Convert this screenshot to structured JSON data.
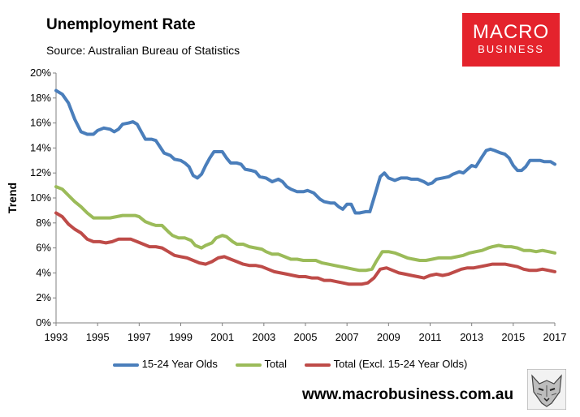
{
  "header": {
    "title": "Unemployment Rate",
    "source": "Source: Australian Bureau of Statistics"
  },
  "logo": {
    "line1": "MACRO",
    "line2": "BUSINESS"
  },
  "footer": {
    "url": "www.macrobusiness.com.au"
  },
  "chart_data": {
    "type": "line",
    "title": "Unemployment Rate",
    "xlabel": "",
    "ylabel": "Trend",
    "xlim": [
      1993,
      2017
    ],
    "ylim": [
      0,
      20
    ],
    "y_ticks": [
      0,
      2,
      4,
      6,
      8,
      10,
      12,
      14,
      16,
      18,
      20
    ],
    "y_tick_labels": [
      "0%",
      "2%",
      "4%",
      "6%",
      "8%",
      "10%",
      "12%",
      "14%",
      "16%",
      "18%",
      "20%"
    ],
    "x_ticks": [
      1993,
      1995,
      1997,
      1999,
      2001,
      2003,
      2005,
      2007,
      2009,
      2011,
      2013,
      2015,
      2017
    ],
    "x_tick_labels": [
      "1993",
      "1995",
      "1997",
      "1999",
      "2001",
      "2003",
      "2005",
      "2007",
      "2009",
      "2011",
      "2013",
      "2015",
      "2017"
    ],
    "grid": false,
    "legend_position": "bottom",
    "series": [
      {
        "name": "15-24 Year Olds",
        "color": "#4a7ebb",
        "points": [
          [
            1993.0,
            18.6
          ],
          [
            1993.3,
            18.3
          ],
          [
            1993.6,
            17.6
          ],
          [
            1993.9,
            16.3
          ],
          [
            1994.2,
            15.3
          ],
          [
            1994.5,
            15.1
          ],
          [
            1994.8,
            15.1
          ],
          [
            1995.0,
            15.4
          ],
          [
            1995.3,
            15.6
          ],
          [
            1995.6,
            15.5
          ],
          [
            1995.8,
            15.3
          ],
          [
            1996.0,
            15.5
          ],
          [
            1996.2,
            15.9
          ],
          [
            1996.5,
            16.0
          ],
          [
            1996.7,
            16.1
          ],
          [
            1996.9,
            15.9
          ],
          [
            1997.1,
            15.3
          ],
          [
            1997.3,
            14.7
          ],
          [
            1997.6,
            14.7
          ],
          [
            1997.8,
            14.6
          ],
          [
            1998.0,
            14.1
          ],
          [
            1998.2,
            13.6
          ],
          [
            1998.5,
            13.4
          ],
          [
            1998.7,
            13.1
          ],
          [
            1999.0,
            13.0
          ],
          [
            1999.2,
            12.8
          ],
          [
            1999.4,
            12.5
          ],
          [
            1999.6,
            11.8
          ],
          [
            1999.8,
            11.6
          ],
          [
            2000.0,
            11.9
          ],
          [
            2000.2,
            12.6
          ],
          [
            2000.4,
            13.2
          ],
          [
            2000.6,
            13.7
          ],
          [
            2000.8,
            13.7
          ],
          [
            2001.0,
            13.7
          ],
          [
            2001.2,
            13.2
          ],
          [
            2001.4,
            12.8
          ],
          [
            2001.7,
            12.8
          ],
          [
            2001.9,
            12.7
          ],
          [
            2002.1,
            12.3
          ],
          [
            2002.4,
            12.2
          ],
          [
            2002.6,
            12.1
          ],
          [
            2002.8,
            11.7
          ],
          [
            2003.1,
            11.6
          ],
          [
            2003.4,
            11.3
          ],
          [
            2003.7,
            11.5
          ],
          [
            2003.9,
            11.3
          ],
          [
            2004.1,
            10.9
          ],
          [
            2004.3,
            10.7
          ],
          [
            2004.6,
            10.5
          ],
          [
            2004.9,
            10.5
          ],
          [
            2005.1,
            10.6
          ],
          [
            2005.4,
            10.4
          ],
          [
            2005.7,
            9.9
          ],
          [
            2005.9,
            9.7
          ],
          [
            2006.2,
            9.6
          ],
          [
            2006.4,
            9.6
          ],
          [
            2006.6,
            9.3
          ],
          [
            2006.8,
            9.1
          ],
          [
            2007.0,
            9.5
          ],
          [
            2007.2,
            9.5
          ],
          [
            2007.4,
            8.8
          ],
          [
            2007.6,
            8.8
          ],
          [
            2007.9,
            8.9
          ],
          [
            2008.1,
            8.9
          ],
          [
            2008.3,
            10.0
          ],
          [
            2008.6,
            11.7
          ],
          [
            2008.8,
            12.0
          ],
          [
            2009.0,
            11.6
          ],
          [
            2009.3,
            11.4
          ],
          [
            2009.6,
            11.6
          ],
          [
            2009.9,
            11.6
          ],
          [
            2010.1,
            11.5
          ],
          [
            2010.4,
            11.5
          ],
          [
            2010.7,
            11.3
          ],
          [
            2010.9,
            11.1
          ],
          [
            2011.1,
            11.2
          ],
          [
            2011.3,
            11.5
          ],
          [
            2011.6,
            11.6
          ],
          [
            2011.9,
            11.7
          ],
          [
            2012.1,
            11.9
          ],
          [
            2012.4,
            12.1
          ],
          [
            2012.6,
            12.0
          ],
          [
            2012.8,
            12.3
          ],
          [
            2013.0,
            12.6
          ],
          [
            2013.2,
            12.5
          ],
          [
            2013.5,
            13.3
          ],
          [
            2013.7,
            13.8
          ],
          [
            2013.9,
            13.9
          ],
          [
            2014.1,
            13.8
          ],
          [
            2014.4,
            13.6
          ],
          [
            2014.6,
            13.5
          ],
          [
            2014.8,
            13.2
          ],
          [
            2015.0,
            12.6
          ],
          [
            2015.2,
            12.2
          ],
          [
            2015.4,
            12.2
          ],
          [
            2015.6,
            12.5
          ],
          [
            2015.8,
            13.0
          ],
          [
            2016.0,
            13.0
          ],
          [
            2016.3,
            13.0
          ],
          [
            2016.5,
            12.9
          ],
          [
            2016.8,
            12.9
          ],
          [
            2017.0,
            12.7
          ]
        ]
      },
      {
        "name": "Total",
        "color": "#9bbb59",
        "points": [
          [
            1993.0,
            10.9
          ],
          [
            1993.3,
            10.7
          ],
          [
            1993.6,
            10.2
          ],
          [
            1993.9,
            9.7
          ],
          [
            1994.2,
            9.3
          ],
          [
            1994.5,
            8.8
          ],
          [
            1994.8,
            8.4
          ],
          [
            1995.0,
            8.4
          ],
          [
            1995.3,
            8.4
          ],
          [
            1995.6,
            8.4
          ],
          [
            1995.9,
            8.5
          ],
          [
            1996.2,
            8.6
          ],
          [
            1996.5,
            8.6
          ],
          [
            1996.8,
            8.6
          ],
          [
            1997.0,
            8.5
          ],
          [
            1997.3,
            8.1
          ],
          [
            1997.6,
            7.9
          ],
          [
            1997.8,
            7.8
          ],
          [
            1998.1,
            7.8
          ],
          [
            1998.4,
            7.3
          ],
          [
            1998.6,
            7.0
          ],
          [
            1998.9,
            6.8
          ],
          [
            1999.2,
            6.8
          ],
          [
            1999.5,
            6.6
          ],
          [
            1999.7,
            6.2
          ],
          [
            2000.0,
            6.0
          ],
          [
            2000.2,
            6.2
          ],
          [
            2000.5,
            6.4
          ],
          [
            2000.7,
            6.8
          ],
          [
            2001.0,
            7.0
          ],
          [
            2001.2,
            6.9
          ],
          [
            2001.5,
            6.5
          ],
          [
            2001.7,
            6.3
          ],
          [
            2002.0,
            6.3
          ],
          [
            2002.3,
            6.1
          ],
          [
            2002.6,
            6.0
          ],
          [
            2002.9,
            5.9
          ],
          [
            2003.1,
            5.7
          ],
          [
            2003.4,
            5.5
          ],
          [
            2003.7,
            5.5
          ],
          [
            2004.0,
            5.3
          ],
          [
            2004.3,
            5.1
          ],
          [
            2004.6,
            5.1
          ],
          [
            2004.9,
            5.0
          ],
          [
            2005.2,
            5.0
          ],
          [
            2005.5,
            5.0
          ],
          [
            2005.8,
            4.8
          ],
          [
            2006.1,
            4.7
          ],
          [
            2006.4,
            4.6
          ],
          [
            2006.7,
            4.5
          ],
          [
            2007.0,
            4.4
          ],
          [
            2007.3,
            4.3
          ],
          [
            2007.6,
            4.2
          ],
          [
            2007.9,
            4.2
          ],
          [
            2008.2,
            4.3
          ],
          [
            2008.4,
            4.9
          ],
          [
            2008.7,
            5.7
          ],
          [
            2009.0,
            5.7
          ],
          [
            2009.3,
            5.6
          ],
          [
            2009.6,
            5.4
          ],
          [
            2009.9,
            5.2
          ],
          [
            2010.2,
            5.1
          ],
          [
            2010.5,
            5.0
          ],
          [
            2010.8,
            5.0
          ],
          [
            2011.1,
            5.1
          ],
          [
            2011.4,
            5.2
          ],
          [
            2011.7,
            5.2
          ],
          [
            2012.0,
            5.2
          ],
          [
            2012.3,
            5.3
          ],
          [
            2012.6,
            5.4
          ],
          [
            2012.9,
            5.6
          ],
          [
            2013.2,
            5.7
          ],
          [
            2013.5,
            5.8
          ],
          [
            2013.8,
            6.0
          ],
          [
            2014.0,
            6.1
          ],
          [
            2014.3,
            6.2
          ],
          [
            2014.6,
            6.1
          ],
          [
            2014.9,
            6.1
          ],
          [
            2015.2,
            6.0
          ],
          [
            2015.5,
            5.8
          ],
          [
            2015.8,
            5.8
          ],
          [
            2016.1,
            5.7
          ],
          [
            2016.4,
            5.8
          ],
          [
            2016.7,
            5.7
          ],
          [
            2017.0,
            5.6
          ]
        ]
      },
      {
        "name": "Total (Excl. 15-24 Year Olds)",
        "color": "#be4b48",
        "points": [
          [
            1993.0,
            8.8
          ],
          [
            1993.3,
            8.5
          ],
          [
            1993.6,
            7.9
          ],
          [
            1993.9,
            7.5
          ],
          [
            1994.2,
            7.2
          ],
          [
            1994.5,
            6.7
          ],
          [
            1994.8,
            6.5
          ],
          [
            1995.1,
            6.5
          ],
          [
            1995.4,
            6.4
          ],
          [
            1995.7,
            6.5
          ],
          [
            1996.0,
            6.7
          ],
          [
            1996.3,
            6.7
          ],
          [
            1996.6,
            6.7
          ],
          [
            1996.9,
            6.5
          ],
          [
            1997.2,
            6.3
          ],
          [
            1997.5,
            6.1
          ],
          [
            1997.8,
            6.1
          ],
          [
            1998.1,
            6.0
          ],
          [
            1998.4,
            5.7
          ],
          [
            1998.7,
            5.4
          ],
          [
            1999.0,
            5.3
          ],
          [
            1999.3,
            5.2
          ],
          [
            1999.6,
            5.0
          ],
          [
            1999.9,
            4.8
          ],
          [
            2000.2,
            4.7
          ],
          [
            2000.5,
            4.9
          ],
          [
            2000.8,
            5.2
          ],
          [
            2001.1,
            5.3
          ],
          [
            2001.4,
            5.1
          ],
          [
            2001.7,
            4.9
          ],
          [
            2002.0,
            4.7
          ],
          [
            2002.3,
            4.6
          ],
          [
            2002.6,
            4.6
          ],
          [
            2002.9,
            4.5
          ],
          [
            2003.2,
            4.3
          ],
          [
            2003.5,
            4.1
          ],
          [
            2003.8,
            4.0
          ],
          [
            2004.1,
            3.9
          ],
          [
            2004.4,
            3.8
          ],
          [
            2004.7,
            3.7
          ],
          [
            2005.0,
            3.7
          ],
          [
            2005.3,
            3.6
          ],
          [
            2005.6,
            3.6
          ],
          [
            2005.9,
            3.4
          ],
          [
            2006.2,
            3.4
          ],
          [
            2006.5,
            3.3
          ],
          [
            2006.8,
            3.2
          ],
          [
            2007.1,
            3.1
          ],
          [
            2007.4,
            3.1
          ],
          [
            2007.7,
            3.1
          ],
          [
            2008.0,
            3.2
          ],
          [
            2008.3,
            3.6
          ],
          [
            2008.6,
            4.3
          ],
          [
            2008.9,
            4.4
          ],
          [
            2009.2,
            4.2
          ],
          [
            2009.5,
            4.0
          ],
          [
            2009.8,
            3.9
          ],
          [
            2010.1,
            3.8
          ],
          [
            2010.4,
            3.7
          ],
          [
            2010.7,
            3.6
          ],
          [
            2011.0,
            3.8
          ],
          [
            2011.3,
            3.9
          ],
          [
            2011.6,
            3.8
          ],
          [
            2011.9,
            3.9
          ],
          [
            2012.2,
            4.1
          ],
          [
            2012.5,
            4.3
          ],
          [
            2012.8,
            4.4
          ],
          [
            2013.1,
            4.4
          ],
          [
            2013.4,
            4.5
          ],
          [
            2013.7,
            4.6
          ],
          [
            2014.0,
            4.7
          ],
          [
            2014.3,
            4.7
          ],
          [
            2014.6,
            4.7
          ],
          [
            2014.9,
            4.6
          ],
          [
            2015.2,
            4.5
          ],
          [
            2015.5,
            4.3
          ],
          [
            2015.8,
            4.2
          ],
          [
            2016.1,
            4.2
          ],
          [
            2016.4,
            4.3
          ],
          [
            2016.7,
            4.2
          ],
          [
            2017.0,
            4.1
          ]
        ]
      }
    ]
  }
}
